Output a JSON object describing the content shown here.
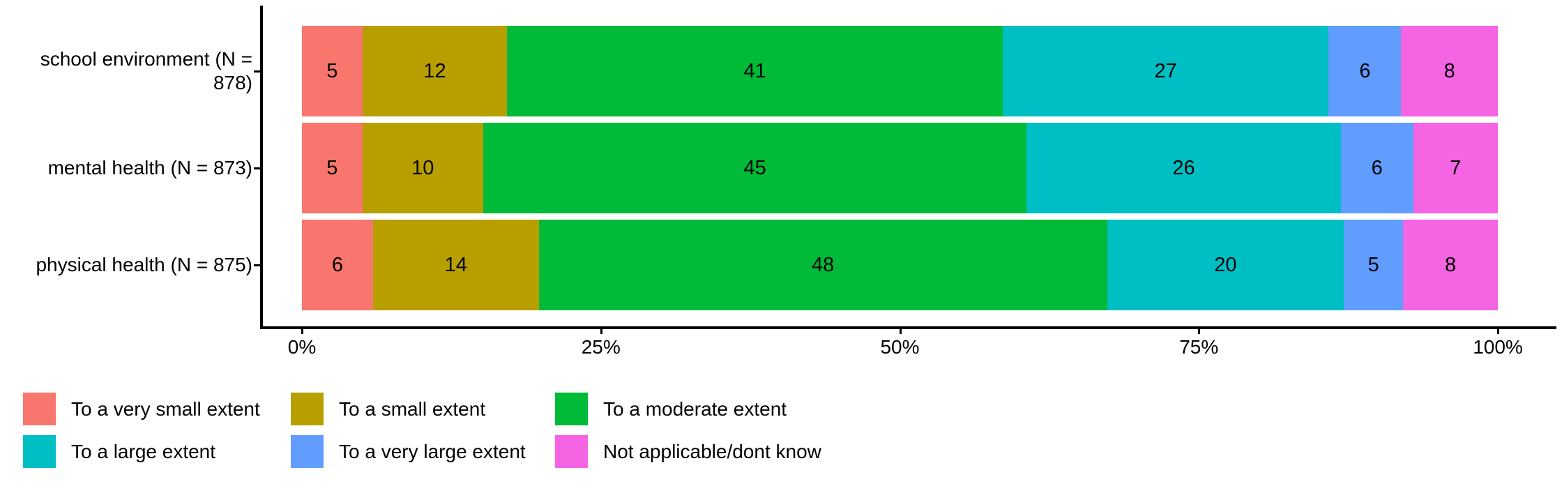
{
  "figure": {
    "background": "#ffffff",
    "text_color": "#000000",
    "axis_color": "#000000"
  },
  "chart_data": {
    "type": "bar",
    "orientation": "horizontal",
    "stacked": true,
    "title": "",
    "xlabel": "",
    "ylabel": "",
    "grid": false,
    "categories": [
      "school environment (N = 878)",
      "mental health (N = 873)",
      "physical health (N = 875)"
    ],
    "category_label_lines": [
      [
        "school environment (N =",
        "878)"
      ],
      [
        "mental health (N = 873)"
      ],
      [
        "physical health (N = 875)"
      ]
    ],
    "series": [
      {
        "name": "To a very small extent",
        "color": "#F8766D",
        "values": [
          5,
          5,
          6
        ]
      },
      {
        "name": "To a small extent",
        "color": "#B79F00",
        "values": [
          12,
          10,
          14
        ]
      },
      {
        "name": "To a moderate extent",
        "color": "#00BA38",
        "values": [
          41,
          45,
          48
        ]
      },
      {
        "name": "To a large extent",
        "color": "#00BFC4",
        "values": [
          27,
          26,
          20
        ]
      },
      {
        "name": "To a very large extent",
        "color": "#619CFF",
        "values": [
          6,
          6,
          5
        ]
      },
      {
        "name": "Not applicable/dont know",
        "color": "#F564E3",
        "values": [
          8,
          7,
          8
        ]
      }
    ],
    "value_labels_shown": true,
    "x_axis": {
      "range": [
        0,
        100
      ],
      "tick_values": [
        0,
        25,
        50,
        75,
        100
      ],
      "tick_labels": [
        "0%",
        "25%",
        "50%",
        "75%",
        "100%"
      ]
    },
    "legend": {
      "position": "bottom",
      "rows": 2,
      "columns": 3
    }
  }
}
